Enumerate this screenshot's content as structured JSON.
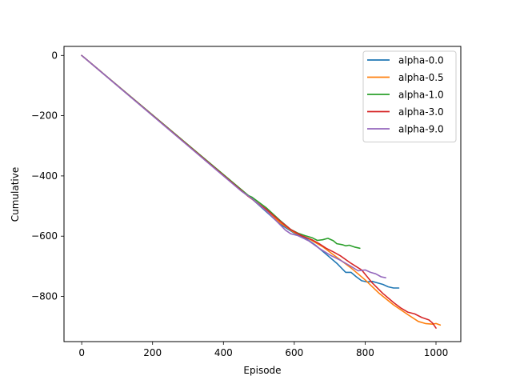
{
  "chart_data": {
    "type": "line",
    "title": "",
    "xlabel": "Episode",
    "ylabel": "Cumulative",
    "xlim": [
      -50,
      1070
    ],
    "ylim": [
      -950,
      30
    ],
    "xticks": [
      0,
      200,
      400,
      600,
      800,
      1000
    ],
    "xtick_labels": [
      "0",
      "200",
      "400",
      "600",
      "800",
      "1000"
    ],
    "yticks": [
      0,
      -200,
      -400,
      -600,
      -800
    ],
    "ytick_labels": [
      "0",
      "−200",
      "−400",
      "−600",
      "−800"
    ],
    "grid": false,
    "legend_position": "top-right",
    "series": [
      {
        "name": "alpha-0.0",
        "color": "#1f77b4",
        "points": [
          [
            0,
            0
          ],
          [
            470,
            -465
          ],
          [
            560,
            -560
          ],
          [
            600,
            -590
          ],
          [
            630,
            -605
          ],
          [
            660,
            -630
          ],
          [
            690,
            -660
          ],
          [
            720,
            -690
          ],
          [
            745,
            -720
          ],
          [
            760,
            -720
          ],
          [
            775,
            -735
          ],
          [
            790,
            -748
          ],
          [
            805,
            -752
          ],
          [
            820,
            -750
          ],
          [
            835,
            -755
          ],
          [
            850,
            -760
          ],
          [
            865,
            -768
          ],
          [
            880,
            -772
          ],
          [
            895,
            -772
          ]
        ]
      },
      {
        "name": "alpha-0.5",
        "color": "#ff7f0e",
        "points": [
          [
            0,
            0
          ],
          [
            470,
            -465
          ],
          [
            560,
            -555
          ],
          [
            600,
            -588
          ],
          [
            640,
            -608
          ],
          [
            680,
            -635
          ],
          [
            720,
            -670
          ],
          [
            760,
            -705
          ],
          [
            800,
            -745
          ],
          [
            840,
            -790
          ],
          [
            880,
            -828
          ],
          [
            920,
            -860
          ],
          [
            950,
            -883
          ],
          [
            970,
            -890
          ],
          [
            990,
            -892
          ],
          [
            1000,
            -890
          ],
          [
            1012,
            -895
          ]
        ]
      },
      {
        "name": "alpha-1.0",
        "color": "#2ca02c",
        "points": [
          [
            0,
            0
          ],
          [
            470,
            -465
          ],
          [
            480,
            -470
          ],
          [
            520,
            -505
          ],
          [
            560,
            -548
          ],
          [
            590,
            -578
          ],
          [
            610,
            -590
          ],
          [
            630,
            -598
          ],
          [
            650,
            -605
          ],
          [
            665,
            -614
          ],
          [
            680,
            -612
          ],
          [
            695,
            -607
          ],
          [
            710,
            -615
          ],
          [
            720,
            -625
          ],
          [
            735,
            -628
          ],
          [
            745,
            -632
          ],
          [
            755,
            -630
          ],
          [
            770,
            -636
          ],
          [
            785,
            -640
          ]
        ]
      },
      {
        "name": "alpha-3.0",
        "color": "#d62728",
        "points": [
          [
            0,
            0
          ],
          [
            470,
            -468
          ],
          [
            520,
            -510
          ],
          [
            560,
            -550
          ],
          [
            590,
            -578
          ],
          [
            620,
            -598
          ],
          [
            650,
            -612
          ],
          [
            670,
            -625
          ],
          [
            690,
            -640
          ],
          [
            710,
            -652
          ],
          [
            730,
            -665
          ],
          [
            760,
            -690
          ],
          [
            790,
            -712
          ],
          [
            820,
            -755
          ],
          [
            850,
            -790
          ],
          [
            880,
            -820
          ],
          [
            900,
            -838
          ],
          [
            920,
            -852
          ],
          [
            940,
            -858
          ],
          [
            960,
            -870
          ],
          [
            980,
            -878
          ],
          [
            990,
            -888
          ],
          [
            1000,
            -905
          ]
        ]
      },
      {
        "name": "alpha-9.0",
        "color": "#9467bd",
        "points": [
          [
            0,
            0
          ],
          [
            450,
            -450
          ],
          [
            480,
            -475
          ],
          [
            520,
            -515
          ],
          [
            550,
            -550
          ],
          [
            575,
            -580
          ],
          [
            590,
            -592
          ],
          [
            610,
            -598
          ],
          [
            640,
            -615
          ],
          [
            670,
            -640
          ],
          [
            700,
            -662
          ],
          [
            730,
            -680
          ],
          [
            760,
            -700
          ],
          [
            780,
            -715
          ],
          [
            800,
            -712
          ],
          [
            815,
            -720
          ],
          [
            830,
            -725
          ],
          [
            845,
            -735
          ],
          [
            858,
            -738
          ]
        ]
      }
    ]
  }
}
